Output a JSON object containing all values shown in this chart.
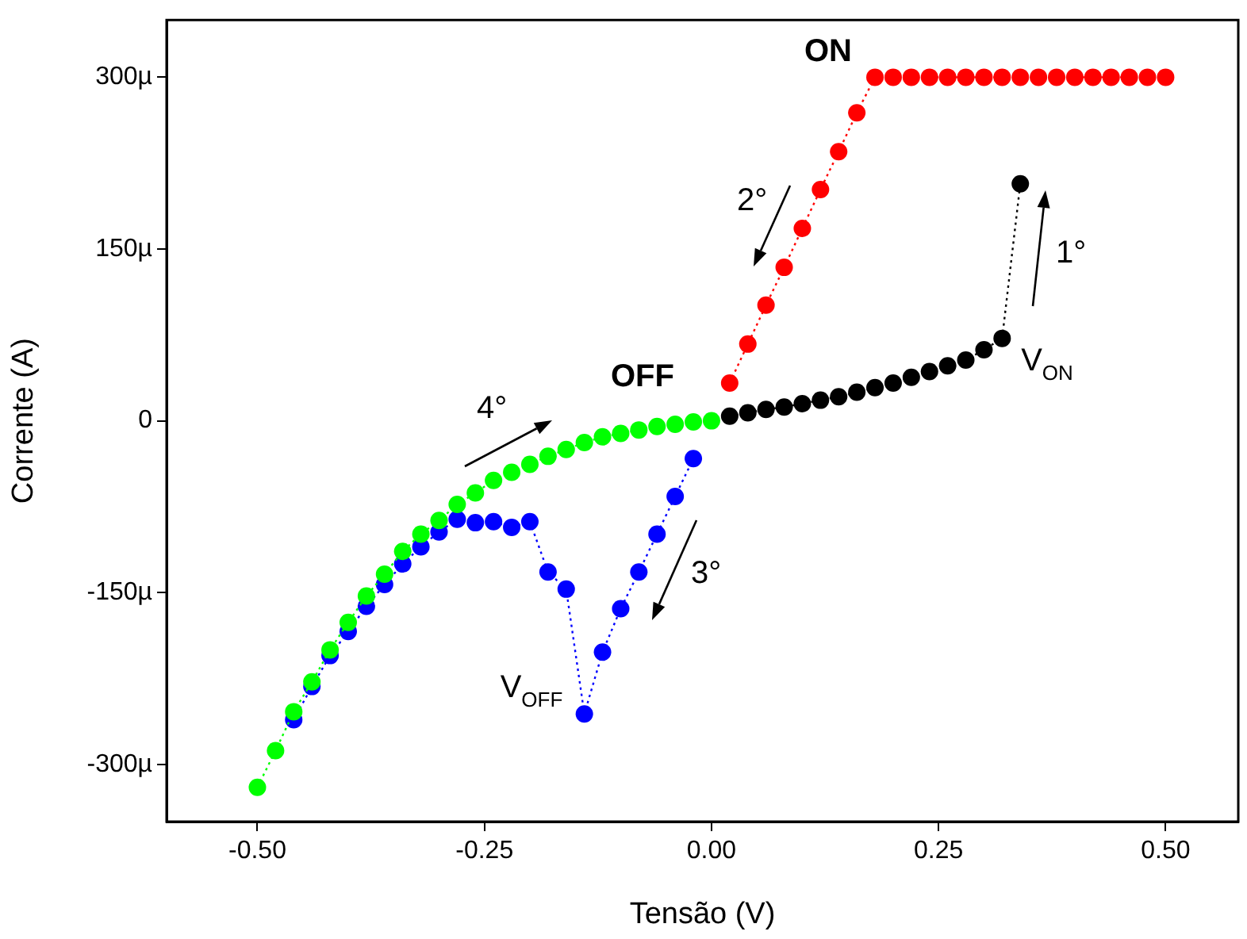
{
  "chart_data": {
    "type": "line",
    "xlabel": "Tensão (V)",
    "ylabel": "Corrente (A)",
    "xlim": [
      -0.6,
      0.58
    ],
    "ylim": [
      -350,
      350
    ],
    "xticks": [
      {
        "value": -0.5,
        "label": "-0.50"
      },
      {
        "value": -0.25,
        "label": "-0.25"
      },
      {
        "value": 0,
        "label": "0.00"
      },
      {
        "value": 0.25,
        "label": "0.25"
      },
      {
        "value": 0.5,
        "label": "0.50"
      }
    ],
    "yticks": [
      {
        "value": -300,
        "label": "-300µ"
      },
      {
        "value": -150,
        "label": "-150µ"
      },
      0,
      {
        "value": 150,
        "label": "150µ"
      },
      {
        "value": 300,
        "label": "300µ"
      }
    ],
    "grid": false,
    "legend": false,
    "marker": "circle",
    "line_style": "dotted",
    "series": [
      {
        "color": "#000000",
        "x": [
          0.02,
          0.04,
          0.06,
          0.08,
          0.1,
          0.12,
          0.14,
          0.16,
          0.18,
          0.2,
          0.22,
          0.24,
          0.26,
          0.28,
          0.3,
          0.32,
          0.34
        ],
        "values": [
          4,
          7,
          10,
          12,
          15,
          18,
          21,
          25,
          29,
          33,
          38,
          43,
          48,
          53,
          62,
          72,
          207
        ]
      },
      {
        "color": "#ff0000",
        "x": [
          0.02,
          0.04,
          0.06,
          0.08,
          0.1,
          0.12,
          0.14,
          0.16,
          0.18,
          0.2,
          0.22,
          0.24,
          0.26,
          0.28,
          0.3,
          0.32,
          0.34,
          0.36,
          0.38,
          0.4,
          0.42,
          0.44,
          0.46,
          0.48,
          0.5
        ],
        "values": [
          33,
          67,
          101,
          134,
          168,
          202,
          235,
          269,
          300,
          300,
          300,
          300,
          300,
          300,
          300,
          300,
          300,
          300,
          300,
          300,
          300,
          300,
          300,
          300,
          300
        ]
      },
      {
        "color": "#0000ff",
        "x": [
          -0.46,
          -0.44,
          -0.42,
          -0.4,
          -0.38,
          -0.36,
          -0.34,
          -0.32,
          -0.3,
          -0.28,
          -0.26,
          -0.24,
          -0.22,
          -0.2,
          -0.18,
          -0.16,
          -0.14,
          -0.12,
          -0.1,
          -0.08,
          -0.06,
          -0.04,
          -0.02
        ],
        "values": [
          -261,
          -232,
          -205,
          -184,
          -162,
          -143,
          -125,
          -110,
          -97,
          -86,
          -89,
          -88,
          -93,
          -88,
          -132,
          -147,
          -256,
          -202,
          -164,
          -132,
          -99,
          -66,
          -33
        ]
      },
      {
        "color": "#00ff00",
        "x": [
          -0.5,
          -0.48,
          -0.46,
          -0.44,
          -0.42,
          -0.4,
          -0.38,
          -0.36,
          -0.34,
          -0.32,
          -0.3,
          -0.28,
          -0.26,
          -0.24,
          -0.22,
          -0.2,
          -0.18,
          -0.16,
          -0.14,
          -0.12,
          -0.1,
          -0.08,
          -0.06,
          -0.04,
          -0.02,
          0
        ],
        "values": [
          -320,
          -288,
          -254,
          -228,
          -200,
          -176,
          -153,
          -134,
          -114,
          -99,
          -87,
          -73,
          -63,
          -52,
          -45,
          -38,
          -31,
          -25,
          -19,
          -14,
          -11,
          -8,
          -5,
          -3,
          -1,
          0
        ]
      }
    ],
    "annotations": [
      "ON",
      "OFF",
      "1°",
      "2°",
      "3°",
      "4°",
      "V$_{ON}$",
      "V$_{OFF}$"
    ]
  }
}
